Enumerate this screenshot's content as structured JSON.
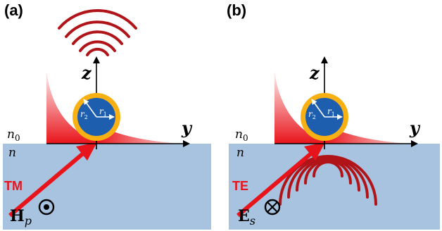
{
  "panels": [
    {
      "label": "(a)",
      "axis_z": "z",
      "axis_y": "y",
      "index_top": "n",
      "index_top_sub": "0",
      "index_bottom": "n",
      "radius_outer": "r",
      "radius_outer_sub": "2",
      "radius_inner": "r",
      "radius_inner_sub": "1",
      "polarization": "TM",
      "field": "H",
      "field_sub": "p",
      "field_symbol": "dot-circle-icon",
      "emission": "upward"
    },
    {
      "label": "(b)",
      "axis_z": "z",
      "axis_y": "y",
      "index_top": "n",
      "index_top_sub": "0",
      "index_bottom": "n",
      "radius_outer": "r",
      "radius_outer_sub": "2",
      "radius_inner": "r",
      "radius_inner_sub": "1",
      "polarization": "TE",
      "field": "E",
      "field_sub": "s",
      "field_symbol": "cross-circle-icon",
      "emission": "downward"
    }
  ],
  "colors": {
    "substrate": "#a7c3df",
    "beam": "#e8141b",
    "waves": "#b01419",
    "shell": "#f9b012",
    "core": "#1d5fae",
    "axis": "#000000"
  }
}
